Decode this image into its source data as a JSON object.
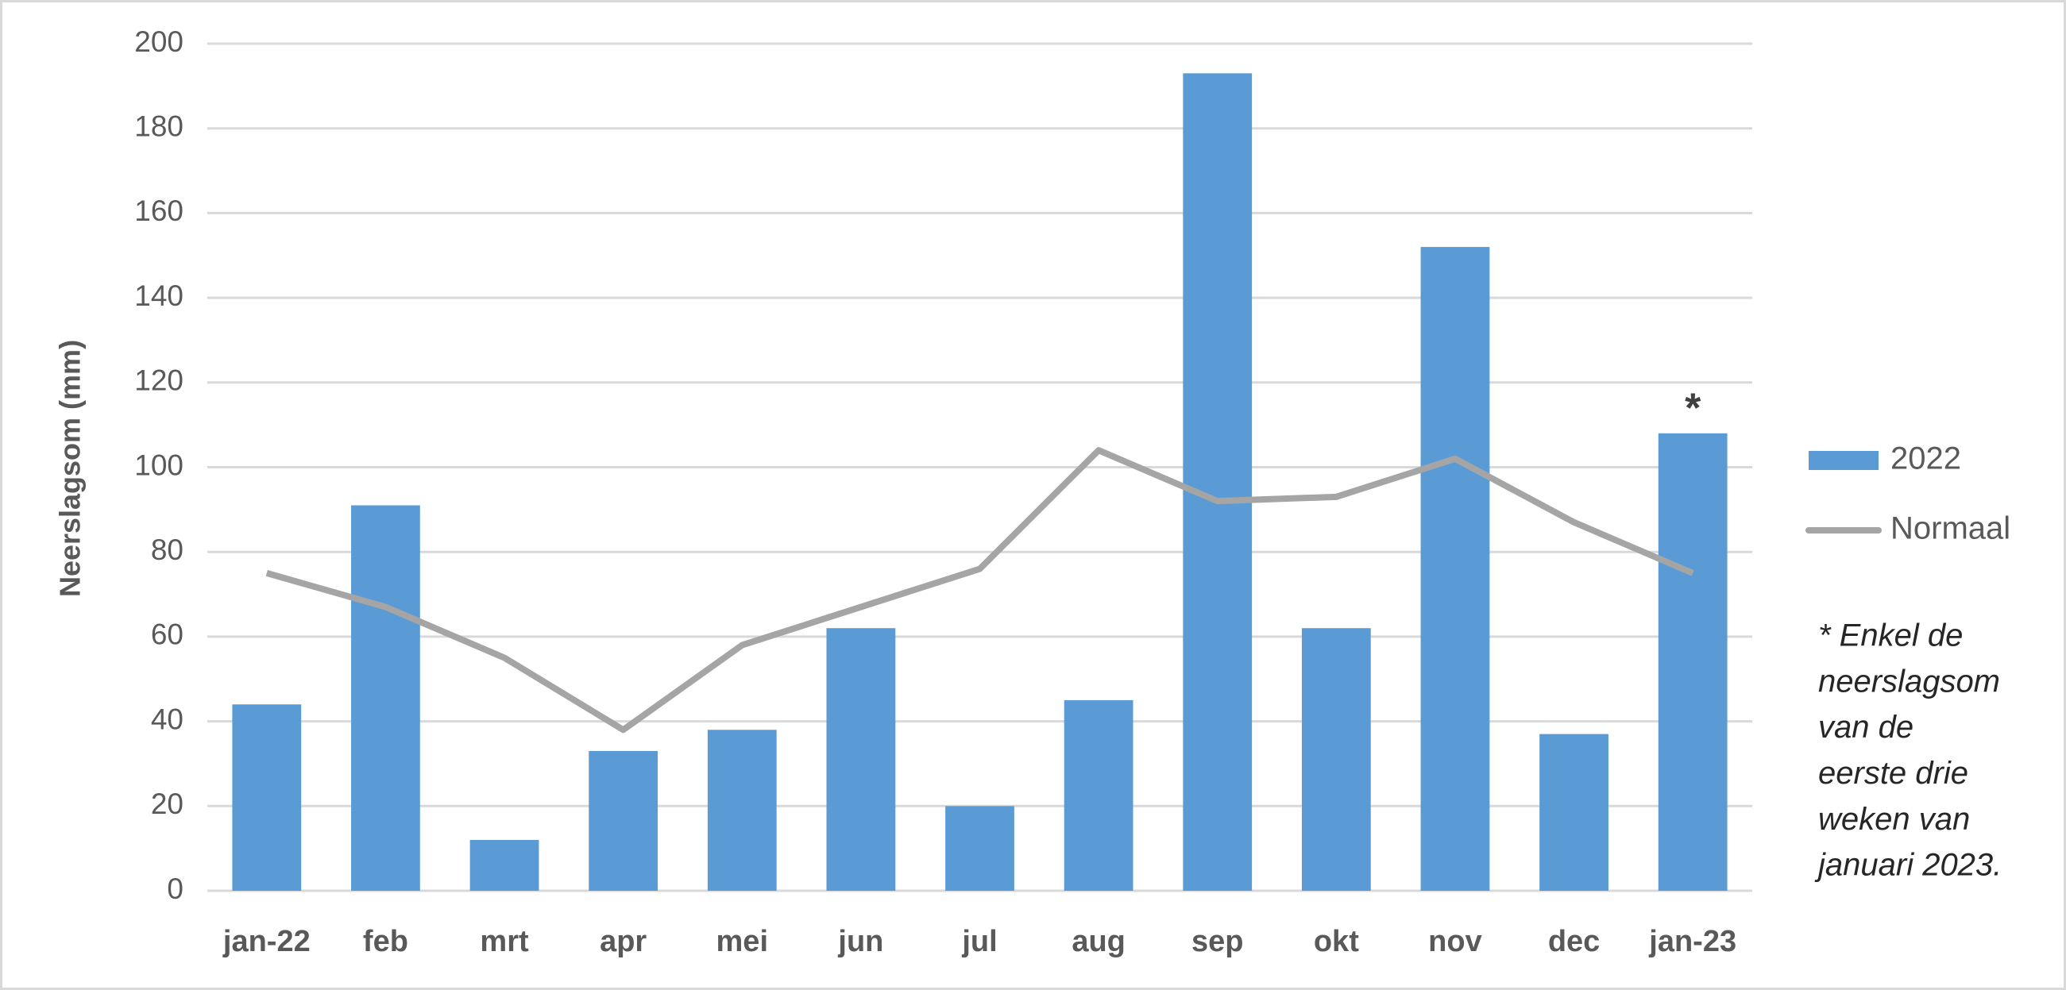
{
  "chart_data": {
    "type": "bar",
    "ylabel": "Neerslagsom (mm)",
    "categories": [
      "jan-22",
      "feb",
      "mrt",
      "apr",
      "mei",
      "jun",
      "jul",
      "aug",
      "sep",
      "okt",
      "nov",
      "dec",
      "jan-23"
    ],
    "series": [
      {
        "name": "2022",
        "type": "bar",
        "color": "#5b9bd5",
        "values": [
          44,
          91,
          12,
          33,
          38,
          62,
          20,
          45,
          193,
          62,
          152,
          37,
          108
        ]
      },
      {
        "name": "Normaal",
        "type": "line",
        "color": "#a5a5a5",
        "values": [
          75,
          67,
          55,
          38,
          58,
          67,
          76,
          104,
          92,
          93,
          102,
          87,
          75
        ]
      }
    ],
    "ylim": [
      0,
      200
    ],
    "yticks": [
      0,
      20,
      40,
      60,
      80,
      100,
      120,
      140,
      160,
      180,
      200
    ],
    "grid": true,
    "annotations": [
      {
        "text": "*",
        "category": 12
      },
      {
        "lines": [
          "* Enkel de",
          "neerslagsom",
          "van de",
          "eerste drie",
          "weken van",
          "januari 2023."
        ]
      }
    ]
  }
}
